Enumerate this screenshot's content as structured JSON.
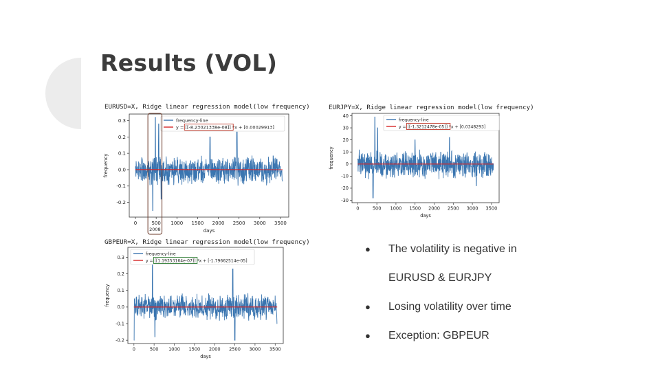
{
  "slide": {
    "title": "Results (VOL)",
    "bullets": [
      {
        "text": "The volatility is negative in",
        "marker": true
      },
      {
        "text": "EURUSD & EURJPY",
        "marker": false
      },
      {
        "text": "Losing volatility over time",
        "marker": true
      },
      {
        "text": "Exception: GBPEUR",
        "marker": true
      }
    ],
    "bullet_marker": "●",
    "colors": {
      "accent_shape": "#e6e6e6",
      "title": "#3c3c3c",
      "line": "#3a75b0",
      "fit": "#d62728",
      "highlight_red": "#c0392b",
      "highlight_green": "#2e7d32",
      "highlight_brown": "#6b3a2a"
    }
  },
  "chart_data": [
    {
      "type": "line",
      "title": "EURUSD=X, Ridge linear regression model(low frequency)",
      "xlabel": "days",
      "ylabel": "frequency",
      "xlim": [
        -150,
        3700
      ],
      "ylim": [
        -0.29,
        0.34
      ],
      "xticks": [
        0,
        500,
        1000,
        1500,
        2000,
        2500,
        3000,
        3500
      ],
      "yticks": [
        -0.2,
        -0.1,
        0.0,
        0.1,
        0.2,
        0.3
      ],
      "ytick_labels": [
        "-0.2",
        "-0.1",
        "0.0",
        "0.1",
        "0.2",
        "0.3"
      ],
      "legend": [
        "frequency-line",
        "y = [[-8.23021338e-08]] *x + [0.00029913]"
      ],
      "legend_position": "top",
      "highlight_legend_part": "[[-8.23021338e-08]]",
      "highlight_color": "red",
      "annotation": {
        "label": "2008",
        "x_from": 300,
        "x_to": 640
      },
      "series": [
        {
          "name": "frequency-line",
          "amp_base": 0.07,
          "peaks": [
            [
              480,
              0.32
            ],
            [
              420,
              -0.25
            ],
            [
              560,
              0.28
            ],
            [
              620,
              -0.18
            ],
            [
              1800,
              0.2
            ],
            [
              2450,
              0.23
            ]
          ]
        },
        {
          "name": "fit",
          "slope": -8.23021338e-08,
          "intercept": 0.00029913
        }
      ]
    },
    {
      "type": "line",
      "title": "EURJPY=X, Ridge linear regression model(low frequency)",
      "xlabel": "days",
      "ylabel": "frequency",
      "xlim": [
        -150,
        3700
      ],
      "ylim": [
        -32,
        42
      ],
      "xticks": [
        0,
        500,
        1000,
        1500,
        2000,
        2500,
        3000,
        3500
      ],
      "yticks": [
        -30,
        -20,
        -10,
        0,
        10,
        20,
        30,
        40
      ],
      "ytick_labels": [
        "-30",
        "-20",
        "-10",
        "0",
        "10",
        "20",
        "30",
        "40"
      ],
      "legend": [
        "frequency-line",
        "y = [[-1.3212478e-05]] *x + [0.0348293]"
      ],
      "legend_position": "top-right",
      "highlight_legend_part": "[[-1.3212478e-05]]",
      "highlight_color": "red",
      "series": [
        {
          "name": "frequency-line",
          "amp_base": 9,
          "peaks": [
            [
              450,
              39
            ],
            [
              400,
              -28
            ],
            [
              520,
              30
            ],
            [
              1500,
              20
            ],
            [
              2400,
              22
            ],
            [
              3100,
              -18
            ]
          ]
        },
        {
          "name": "fit",
          "slope": -1.3212478e-05,
          "intercept": 0.0348293
        }
      ]
    },
    {
      "type": "line",
      "title": "GBPEUR=X, Ridge linear regression model(low frequency)",
      "xlabel": "days",
      "ylabel": "frequency",
      "xlim": [
        -150,
        3700
      ],
      "ylim": [
        -0.22,
        0.36
      ],
      "xticks": [
        0,
        500,
        1000,
        1500,
        2000,
        2500,
        3000,
        3500
      ],
      "yticks": [
        -0.2,
        -0.1,
        0.0,
        0.1,
        0.2,
        0.3
      ],
      "ytick_labels": [
        "-0.2",
        "-0.1",
        "0.0",
        "0.1",
        "0.2",
        "0.3"
      ],
      "legend": [
        "frequency-line",
        "y = [[1.19353164e-07]] *x + [-1.79662514e-05]"
      ],
      "legend_position": "top-left",
      "highlight_legend_part": "[[1.19353164e-07]]",
      "highlight_color": "green",
      "series": [
        {
          "name": "frequency-line",
          "amp_base": 0.06,
          "peaks": [
            [
              0,
              -0.2
            ],
            [
              460,
              0.3
            ],
            [
              520,
              -0.18
            ],
            [
              2450,
              0.23
            ],
            [
              2500,
              -0.2
            ],
            [
              3550,
              -0.1
            ]
          ]
        },
        {
          "name": "fit",
          "slope": 1.19353164e-07,
          "intercept": -1.79662514e-05
        }
      ]
    }
  ]
}
